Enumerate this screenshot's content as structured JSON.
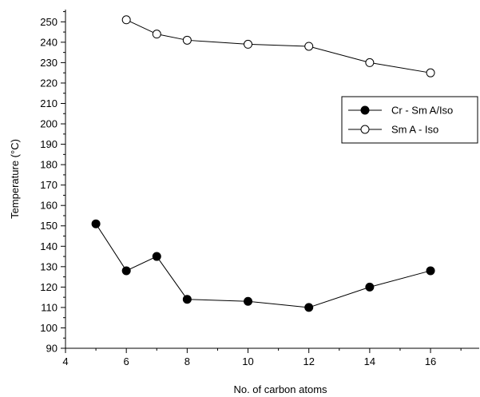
{
  "chart_data": {
    "type": "line",
    "xlabel": "No. of carbon atoms",
    "ylabel": "Temperature (°C)",
    "xlim": [
      4,
      17.6
    ],
    "ylim": [
      90,
      256
    ],
    "xticks": [
      4,
      6,
      8,
      10,
      12,
      14,
      16
    ],
    "yticks": [
      90,
      100,
      110,
      120,
      130,
      140,
      150,
      160,
      170,
      180,
      190,
      200,
      210,
      220,
      230,
      240,
      250
    ],
    "legend_position": "right",
    "series": [
      {
        "name": "Cr - Sm A/Iso",
        "marker": "filled-circle",
        "color": "#000000",
        "x": [
          5,
          6,
          7,
          8,
          10,
          12,
          14,
          16
        ],
        "y": [
          151,
          128,
          135,
          114,
          113,
          110,
          120,
          128
        ]
      },
      {
        "name": "Sm A - Iso",
        "marker": "open-circle",
        "color": "#000000",
        "x": [
          6,
          7,
          8,
          10,
          12,
          14,
          16
        ],
        "y": [
          251,
          244,
          241,
          239,
          238,
          230,
          225
        ]
      }
    ]
  }
}
